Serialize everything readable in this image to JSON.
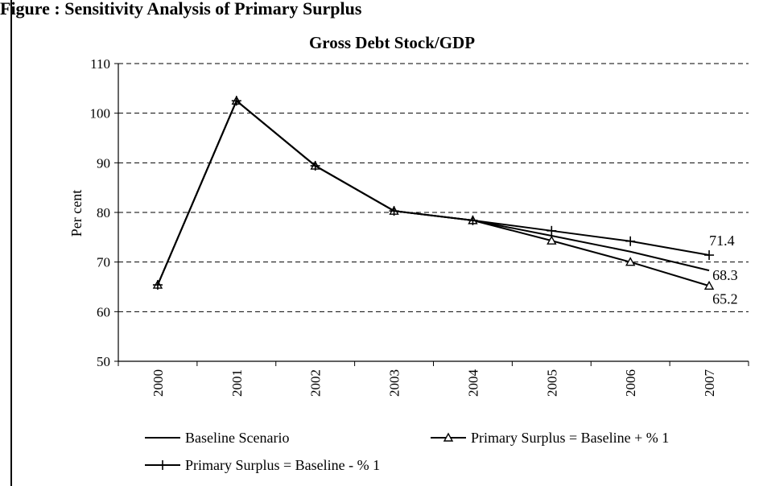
{
  "page_heading": "Figure : Sensitivity Analysis of Primary Surplus",
  "chart_data": {
    "type": "line",
    "title": "Gross Debt Stock/GDP",
    "xlabel": "",
    "ylabel": "Per cent",
    "categories": [
      "2000",
      "2001",
      "2002",
      "2003",
      "2004",
      "2005",
      "2006",
      "2007"
    ],
    "ylim": [
      50,
      110
    ],
    "yticks": [
      50,
      60,
      70,
      80,
      90,
      100,
      110
    ],
    "grid": "horizontal dashed",
    "legend_position": "bottom",
    "series": [
      {
        "name": "Baseline Scenario",
        "marker": "none",
        "color": "#000000",
        "values": [
          65.4,
          102.5,
          89.4,
          80.3,
          78.4,
          75.3,
          72.1,
          68.3
        ]
      },
      {
        "name": "Primary Surplus = Baseline + % 1",
        "marker": "triangle",
        "color": "#000000",
        "values": [
          65.4,
          102.5,
          89.4,
          80.3,
          78.4,
          74.3,
          70.0,
          65.2
        ]
      },
      {
        "name": "Primary Surplus = Baseline - % 1",
        "marker": "plus",
        "color": "#000000",
        "values": [
          65.4,
          102.5,
          89.4,
          80.3,
          78.4,
          76.3,
          74.2,
          71.4
        ]
      }
    ],
    "data_labels": [
      {
        "series": 2,
        "category": "2007",
        "text": "71.4"
      },
      {
        "series": 0,
        "category": "2007",
        "text": "68.3"
      },
      {
        "series": 1,
        "category": "2007",
        "text": "65.2"
      }
    ]
  }
}
